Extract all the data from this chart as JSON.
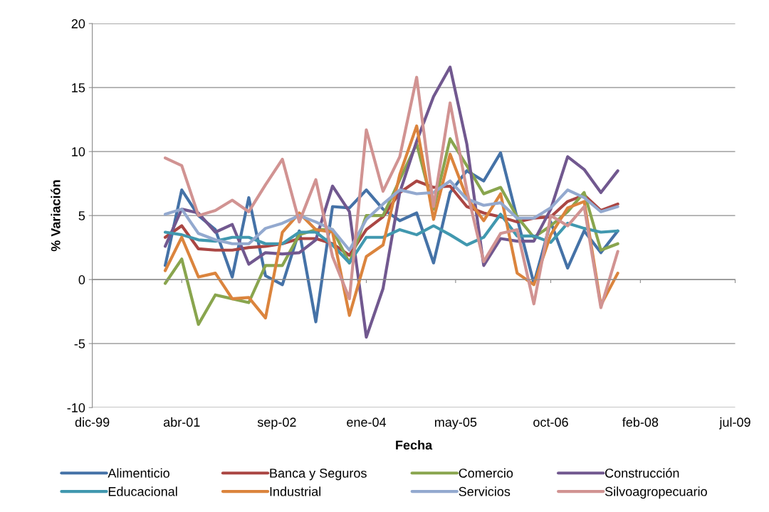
{
  "chart_data": {
    "type": "line",
    "xlabel": "Fecha",
    "ylabel": "% Variación",
    "x": [
      "2001-01",
      "2001-04",
      "2001-07",
      "2001-10",
      "2002-01",
      "2002-04",
      "2002-07",
      "2002-10",
      "2003-01",
      "2003-04",
      "2003-07",
      "2003-10",
      "2004-01",
      "2004-04",
      "2004-07",
      "2004-10",
      "2005-01",
      "2005-04",
      "2005-07",
      "2005-10",
      "2006-01",
      "2006-04",
      "2006-07",
      "2006-10",
      "2007-01",
      "2007-04",
      "2007-07",
      "2007-10"
    ],
    "series": [
      {
        "name": "Alimenticio",
        "color": "#4572a7",
        "values": [
          1.1,
          7.0,
          5.0,
          3.9,
          0.2,
          6.4,
          0.3,
          -0.4,
          3.8,
          -3.3,
          5.7,
          5.6,
          7.0,
          5.5,
          4.6,
          5.2,
          1.3,
          6.8,
          8.5,
          7.7,
          9.9,
          4.8,
          -0.3,
          4.5,
          0.9,
          3.8,
          2.1,
          3.8
        ]
      },
      {
        "name": "Banca y Seguros",
        "color": "#aa4643",
        "values": [
          3.3,
          4.2,
          2.4,
          2.3,
          2.3,
          2.5,
          2.6,
          2.8,
          3.2,
          3.2,
          2.8,
          1.9,
          3.9,
          4.9,
          6.8,
          7.7,
          7.2,
          7.3,
          5.7,
          5.2,
          4.9,
          4.5,
          4.8,
          4.9,
          6.1,
          6.6,
          5.4,
          5.9
        ]
      },
      {
        "name": "Comercio",
        "color": "#89a54e",
        "values": [
          -0.3,
          1.6,
          -3.5,
          -1.2,
          -1.5,
          -1.8,
          1.1,
          1.1,
          3.5,
          3.9,
          3.9,
          1.3,
          5.0,
          5.0,
          7.8,
          10.6,
          5.5,
          11.0,
          8.9,
          6.7,
          7.2,
          4.9,
          3.3,
          4.2,
          5.3,
          6.8,
          2.3,
          2.8
        ]
      },
      {
        "name": "Construcción",
        "color": "#71588f",
        "values": [
          2.6,
          5.5,
          5.2,
          3.7,
          4.3,
          1.2,
          2.1,
          2.0,
          2.1,
          3.1,
          7.3,
          5.3,
          -4.5,
          -0.7,
          6.8,
          10.8,
          14.3,
          16.6,
          10.6,
          1.1,
          3.2,
          3.0,
          3.0,
          5.5,
          9.6,
          8.6,
          6.8,
          8.5
        ]
      },
      {
        "name": "Educacional",
        "color": "#4198af",
        "values": [
          3.7,
          3.5,
          3.1,
          3.0,
          3.3,
          3.3,
          2.8,
          2.8,
          3.7,
          3.7,
          2.7,
          1.3,
          3.3,
          3.3,
          3.9,
          3.5,
          4.2,
          3.5,
          2.7,
          3.3,
          5.1,
          3.4,
          3.4,
          2.9,
          4.4,
          4.0,
          3.7,
          3.8
        ]
      },
      {
        "name": "Industrial",
        "color": "#db843d",
        "values": [
          0.7,
          3.3,
          0.2,
          0.5,
          -1.5,
          -1.4,
          -3.0,
          3.7,
          5.2,
          3.9,
          3.7,
          -2.8,
          1.8,
          2.7,
          8.2,
          12.0,
          4.7,
          9.8,
          6.4,
          4.6,
          6.7,
          0.5,
          -0.4,
          3.5,
          5.6,
          6.1,
          -2.0,
          0.5
        ]
      },
      {
        "name": "Servicios",
        "color": "#93a9cf",
        "values": [
          5.1,
          5.5,
          3.6,
          3.1,
          2.8,
          2.8,
          4.0,
          4.4,
          5.0,
          4.5,
          3.9,
          2.3,
          4.7,
          5.9,
          7.0,
          6.7,
          6.8,
          7.7,
          6.3,
          5.8,
          6.0,
          4.8,
          4.8,
          5.6,
          7.0,
          6.4,
          5.3,
          5.7
        ]
      },
      {
        "name": "Silvoagropecuario",
        "color": "#d19392",
        "values": [
          9.5,
          8.9,
          5.0,
          5.4,
          6.2,
          5.3,
          7.4,
          9.4,
          4.5,
          7.8,
          1.8,
          -1.5,
          11.7,
          6.9,
          9.6,
          15.8,
          5.7,
          13.8,
          7.0,
          1.4,
          3.6,
          3.9,
          -1.9,
          5.0,
          4.2,
          5.7,
          -2.2,
          2.2
        ]
      }
    ],
    "xlim": [
      "1999-12",
      "2009-07"
    ],
    "xticks": [
      {
        "value": "1999-12",
        "label": "dic-99"
      },
      {
        "value": "2001-04",
        "label": "abr-01"
      },
      {
        "value": "2002-09",
        "label": "sep-02"
      },
      {
        "value": "2004-01",
        "label": "ene-04"
      },
      {
        "value": "2005-05",
        "label": "may-05"
      },
      {
        "value": "2006-10",
        "label": "oct-06"
      },
      {
        "value": "2008-02",
        "label": "feb-08"
      },
      {
        "value": "2009-07",
        "label": "jul-09"
      }
    ],
    "ylim": [
      -10,
      20
    ],
    "yticks": [
      -10,
      -5,
      0,
      5,
      10,
      15,
      20
    ],
    "grid": "y",
    "legend": "bottom",
    "marker": "none",
    "line_style": "solid"
  }
}
